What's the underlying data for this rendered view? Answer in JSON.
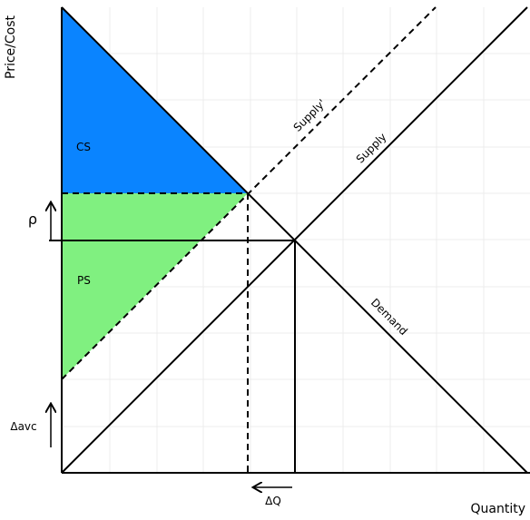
{
  "diagram": {
    "y_axis_label": "Price/Cost",
    "x_axis_label": "Quantity",
    "consumer_surplus_label": "CS",
    "producer_surplus_label": "PS",
    "supply_label": "Supply",
    "supply_shifted_label": "Supply'",
    "demand_label": "Demand",
    "price_change_label": "ρ",
    "avc_change_label": "Δavc",
    "quantity_change_label": "ΔQ",
    "colors": {
      "consumer_surplus": "#0a84ff",
      "producer_surplus": "#80f080",
      "lines": "#000000"
    }
  }
}
